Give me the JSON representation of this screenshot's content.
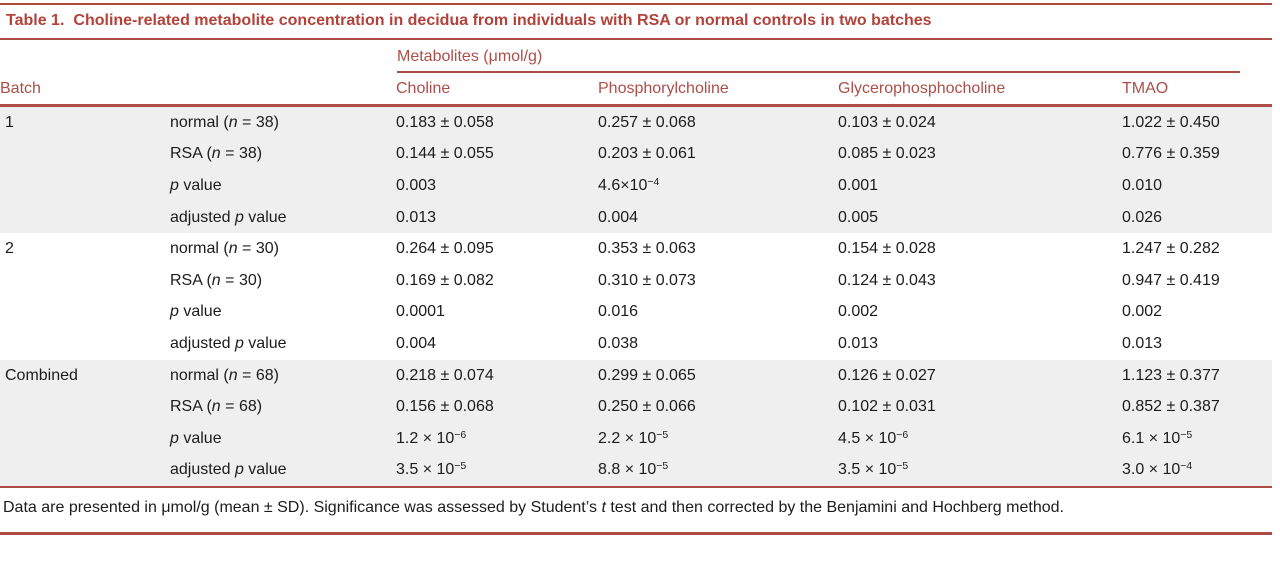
{
  "title": {
    "label": "Table 1.",
    "text": "Choline-related metabolite concentration in decidua from individuals with RSA or normal controls in two batches"
  },
  "table": {
    "metabolites_header": "Metabolites (μmol/g)",
    "batch_column_header": "Batch",
    "metabolite_columns": [
      "Choline",
      "Phosphorylcholine",
      "Glycerophosphocholine",
      "TMAO"
    ],
    "sections": [
      {
        "batch": "1",
        "rows": [
          {
            "label": {
              "pre": "normal (",
              "it": "n",
              "post": " = 38)"
            },
            "values": [
              "0.183 ± 0.058",
              "0.257 ± 0.068",
              "0.103 ± 0.024",
              "1.022 ± 0.450"
            ]
          },
          {
            "label": {
              "pre": "RSA (",
              "it": "n",
              "post": " = 38)"
            },
            "values": [
              "0.144 ± 0.055",
              "0.203 ± 0.061",
              "0.085 ± 0.023",
              "0.776 ± 0.359"
            ]
          },
          {
            "label": {
              "pre": "",
              "it": "p",
              "post": " value"
            },
            "values": [
              "0.003",
              "4.6×10^−4",
              "0.001",
              "0.010"
            ]
          },
          {
            "label": {
              "pre": "adjusted ",
              "it": "p",
              "post": " value"
            },
            "values": [
              "0.013",
              "0.004",
              "0.005",
              "0.026"
            ]
          }
        ]
      },
      {
        "batch": "2",
        "rows": [
          {
            "label": {
              "pre": "normal (",
              "it": "n",
              "post": " = 30)"
            },
            "values": [
              "0.264 ± 0.095",
              "0.353 ± 0.063",
              "0.154 ± 0.028",
              "1.247 ± 0.282"
            ]
          },
          {
            "label": {
              "pre": "RSA (",
              "it": "n",
              "post": " = 30)"
            },
            "values": [
              "0.169 ± 0.082",
              "0.310 ± 0.073",
              "0.124 ± 0.043",
              "0.947 ± 0.419"
            ]
          },
          {
            "label": {
              "pre": "",
              "it": "p",
              "post": " value"
            },
            "values": [
              "0.0001",
              "0.016",
              "0.002",
              "0.002"
            ]
          },
          {
            "label": {
              "pre": "adjusted ",
              "it": "p",
              "post": " value"
            },
            "values": [
              "0.004",
              "0.038",
              "0.013",
              "0.013"
            ]
          }
        ]
      },
      {
        "batch": "Combined",
        "rows": [
          {
            "label": {
              "pre": "normal (",
              "it": "n",
              "post": " = 68)"
            },
            "values": [
              "0.218 ± 0.074",
              "0.299 ± 0.065",
              "0.126 ± 0.027",
              "1.123 ± 0.377"
            ]
          },
          {
            "label": {
              "pre": "RSA (",
              "it": "n",
              "post": " = 68)"
            },
            "values": [
              "0.156 ± 0.068",
              "0.250 ± 0.066",
              "0.102 ± 0.031",
              "0.852 ± 0.387"
            ]
          },
          {
            "label": {
              "pre": "",
              "it": "p",
              "post": " value"
            },
            "values": [
              "1.2 × 10^−6",
              "2.2 × 10^−5",
              "4.5 × 10^−6",
              "6.1 × 10^−5"
            ]
          },
          {
            "label": {
              "pre": "adjusted ",
              "it": "p",
              "post": " value"
            },
            "values": [
              "3.5 × 10^−5",
              "8.8 × 10^−5",
              "3.5 × 10^−5",
              "3.0 × 10^−4"
            ]
          }
        ]
      }
    ]
  },
  "footnote": {
    "pre": "Data are presented in μmol/g (mean ± SD). Significance was assessed by Student’s ",
    "it": "t",
    "post": " test and then corrected by the Benjamini and Hochberg method."
  },
  "colors": {
    "accent_maroon": "#ad4b44",
    "title_text": "#b2423a",
    "header_text": "#ac4f48",
    "section_stripe": "#efefef",
    "body_text": "#1c1c1c"
  }
}
